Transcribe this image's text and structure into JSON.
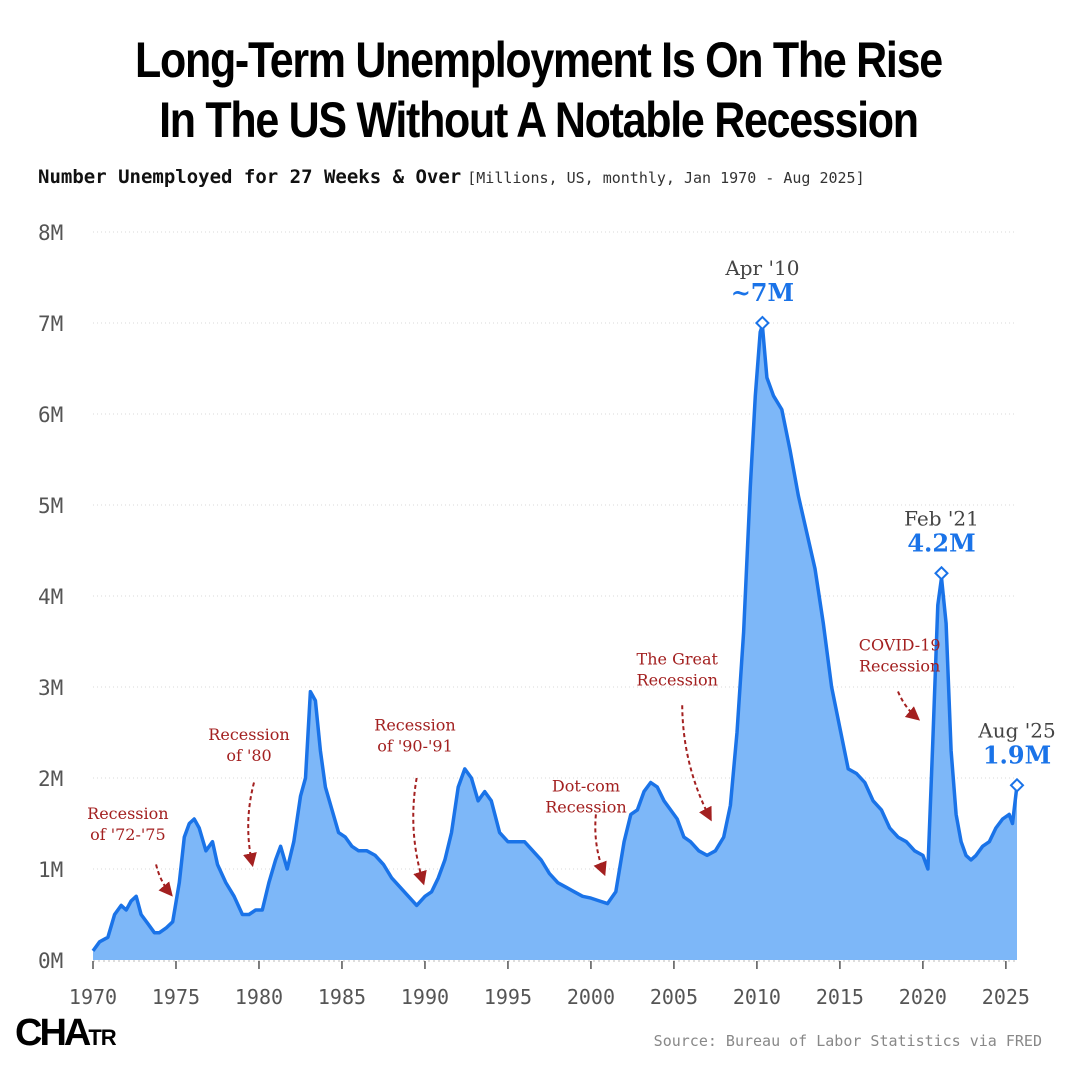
{
  "title_line1": "Long-Term Unemployment Is On The Rise",
  "title_line2": "In The US Without A Notable Recession",
  "subtitle": "Number Unemployed for 27 Weeks & Over",
  "subtitle_meta": "[Millions, US, monthly, Jan 1970 - Aug 2025]",
  "logo_text": "CHA",
  "logo_suffix": "TR",
  "source": "Source: Bureau of Labor Statistics via FRED",
  "colors": {
    "line": "#1a73e8",
    "fill": "#7db7f8",
    "annotation": "#a32020",
    "axis_text": "#555555",
    "callout_label": "#444444"
  },
  "chart_data": {
    "type": "area",
    "title": "Long-Term Unemployment Is On The Rise In The US Without A Notable Recession",
    "xlabel": "",
    "ylabel": "",
    "xlim": [
      1970,
      2025.67
    ],
    "ylim": [
      0,
      8
    ],
    "grid": "horizontal dotted",
    "y_ticks": [
      0,
      1,
      2,
      3,
      4,
      5,
      6,
      7,
      8
    ],
    "y_tick_labels": [
      "0M",
      "1M",
      "2M",
      "3M",
      "4M",
      "5M",
      "6M",
      "7M",
      "8M"
    ],
    "x_ticks": [
      1970,
      1975,
      1980,
      1985,
      1990,
      1995,
      2000,
      2005,
      2010,
      2015,
      2020,
      2025
    ],
    "x_tick_labels": [
      "1970",
      "1975",
      "1980",
      "1985",
      "1990",
      "1995",
      "2000",
      "2005",
      "2010",
      "2015",
      "2020",
      "2025"
    ],
    "series": [
      {
        "points": [
          [
            1970.0,
            0.1
          ],
          [
            1970.4,
            0.2
          ],
          [
            1970.9,
            0.25
          ],
          [
            1971.3,
            0.5
          ],
          [
            1971.7,
            0.6
          ],
          [
            1972.0,
            0.55
          ],
          [
            1972.3,
            0.65
          ],
          [
            1972.6,
            0.7
          ],
          [
            1972.9,
            0.5
          ],
          [
            1973.3,
            0.4
          ],
          [
            1973.7,
            0.3
          ],
          [
            1974.0,
            0.3
          ],
          [
            1974.4,
            0.35
          ],
          [
            1974.8,
            0.42
          ],
          [
            1975.2,
            0.85
          ],
          [
            1975.5,
            1.35
          ],
          [
            1975.8,
            1.5
          ],
          [
            1976.1,
            1.55
          ],
          [
            1976.4,
            1.45
          ],
          [
            1976.8,
            1.2
          ],
          [
            1977.2,
            1.3
          ],
          [
            1977.5,
            1.05
          ],
          [
            1978.0,
            0.85
          ],
          [
            1978.5,
            0.7
          ],
          [
            1979.0,
            0.5
          ],
          [
            1979.4,
            0.5
          ],
          [
            1979.8,
            0.55
          ],
          [
            1980.2,
            0.55
          ],
          [
            1980.6,
            0.85
          ],
          [
            1981.0,
            1.1
          ],
          [
            1981.3,
            1.25
          ],
          [
            1981.7,
            1.0
          ],
          [
            1982.1,
            1.3
          ],
          [
            1982.5,
            1.8
          ],
          [
            1982.8,
            2.0
          ],
          [
            1983.1,
            2.95
          ],
          [
            1983.4,
            2.85
          ],
          [
            1983.7,
            2.3
          ],
          [
            1984.0,
            1.9
          ],
          [
            1984.4,
            1.65
          ],
          [
            1984.8,
            1.4
          ],
          [
            1985.2,
            1.35
          ],
          [
            1985.6,
            1.25
          ],
          [
            1986.0,
            1.2
          ],
          [
            1986.5,
            1.2
          ],
          [
            1987.0,
            1.15
          ],
          [
            1987.5,
            1.05
          ],
          [
            1988.0,
            0.9
          ],
          [
            1988.5,
            0.8
          ],
          [
            1989.0,
            0.7
          ],
          [
            1989.5,
            0.6
          ],
          [
            1990.0,
            0.7
          ],
          [
            1990.4,
            0.75
          ],
          [
            1990.8,
            0.9
          ],
          [
            1991.2,
            1.1
          ],
          [
            1991.6,
            1.4
          ],
          [
            1992.0,
            1.9
          ],
          [
            1992.4,
            2.1
          ],
          [
            1992.8,
            2.0
          ],
          [
            1993.2,
            1.75
          ],
          [
            1993.6,
            1.85
          ],
          [
            1994.0,
            1.75
          ],
          [
            1994.5,
            1.4
          ],
          [
            1995.0,
            1.3
          ],
          [
            1995.5,
            1.3
          ],
          [
            1996.0,
            1.3
          ],
          [
            1996.5,
            1.2
          ],
          [
            1997.0,
            1.1
          ],
          [
            1997.5,
            0.95
          ],
          [
            1998.0,
            0.85
          ],
          [
            1998.5,
            0.8
          ],
          [
            1999.0,
            0.75
          ],
          [
            1999.5,
            0.7
          ],
          [
            2000.0,
            0.68
          ],
          [
            2000.5,
            0.65
          ],
          [
            2001.0,
            0.62
          ],
          [
            2001.5,
            0.75
          ],
          [
            2002.0,
            1.3
          ],
          [
            2002.4,
            1.6
          ],
          [
            2002.8,
            1.65
          ],
          [
            2003.2,
            1.85
          ],
          [
            2003.6,
            1.95
          ],
          [
            2004.0,
            1.9
          ],
          [
            2004.4,
            1.75
          ],
          [
            2004.8,
            1.65
          ],
          [
            2005.2,
            1.55
          ],
          [
            2005.6,
            1.35
          ],
          [
            2006.0,
            1.3
          ],
          [
            2006.5,
            1.2
          ],
          [
            2007.0,
            1.15
          ],
          [
            2007.5,
            1.2
          ],
          [
            2008.0,
            1.35
          ],
          [
            2008.4,
            1.7
          ],
          [
            2008.8,
            2.5
          ],
          [
            2009.2,
            3.6
          ],
          [
            2009.6,
            5.2
          ],
          [
            2009.9,
            6.2
          ],
          [
            2010.2,
            6.9
          ],
          [
            2010.33,
            6.97
          ],
          [
            2010.6,
            6.4
          ],
          [
            2011.0,
            6.2
          ],
          [
            2011.5,
            6.05
          ],
          [
            2012.0,
            5.6
          ],
          [
            2012.5,
            5.1
          ],
          [
            2013.0,
            4.7
          ],
          [
            2013.5,
            4.3
          ],
          [
            2014.0,
            3.7
          ],
          [
            2014.5,
            3.0
          ],
          [
            2015.0,
            2.55
          ],
          [
            2015.5,
            2.1
          ],
          [
            2016.0,
            2.05
          ],
          [
            2016.5,
            1.95
          ],
          [
            2017.0,
            1.75
          ],
          [
            2017.5,
            1.65
          ],
          [
            2018.0,
            1.45
          ],
          [
            2018.5,
            1.35
          ],
          [
            2019.0,
            1.3
          ],
          [
            2019.5,
            1.2
          ],
          [
            2020.0,
            1.15
          ],
          [
            2020.3,
            1.0
          ],
          [
            2020.6,
            2.4
          ],
          [
            2020.9,
            3.9
          ],
          [
            2021.12,
            4.2
          ],
          [
            2021.4,
            3.7
          ],
          [
            2021.7,
            2.3
          ],
          [
            2022.0,
            1.6
          ],
          [
            2022.3,
            1.3
          ],
          [
            2022.6,
            1.15
          ],
          [
            2022.9,
            1.1
          ],
          [
            2023.2,
            1.15
          ],
          [
            2023.6,
            1.25
          ],
          [
            2024.0,
            1.3
          ],
          [
            2024.4,
            1.45
          ],
          [
            2024.8,
            1.55
          ],
          [
            2025.2,
            1.6
          ],
          [
            2025.4,
            1.5
          ],
          [
            2025.67,
            1.92
          ]
        ]
      }
    ],
    "callouts": [
      {
        "date": "Apr '10",
        "value_label": "~7M",
        "x": 2010.33,
        "y": 7.0
      },
      {
        "date": "Feb '21",
        "value_label": "4.2M",
        "x": 2021.12,
        "y": 4.25
      },
      {
        "date": "Aug '25",
        "value_label": "1.9M",
        "x": 2025.67,
        "y": 1.92
      }
    ],
    "annotations": [
      {
        "lines": [
          "Recession",
          "of '72-'75"
        ],
        "text_x": 1972.1,
        "text_y": 1.55,
        "arrow": [
          [
            1973.8,
            1.05
          ],
          [
            1974.7,
            0.72
          ]
        ]
      },
      {
        "lines": [
          "Recession",
          "of '80"
        ],
        "text_x": 1979.4,
        "text_y": 2.42,
        "arrow": [
          [
            1979.7,
            1.95
          ],
          [
            1979.6,
            1.05
          ]
        ]
      },
      {
        "lines": [
          "Recession",
          "of '90-'91"
        ],
        "text_x": 1989.4,
        "text_y": 2.52,
        "arrow": [
          [
            1989.5,
            2.0
          ],
          [
            1989.9,
            0.85
          ]
        ]
      },
      {
        "lines": [
          "Dot-com",
          "Recession"
        ],
        "text_x": 1999.7,
        "text_y": 1.85,
        "arrow": [
          [
            2000.3,
            1.6
          ],
          [
            2000.8,
            0.95
          ]
        ]
      },
      {
        "lines": [
          "The Great",
          "Recession"
        ],
        "text_x": 2005.2,
        "text_y": 3.25,
        "arrow": [
          [
            2005.5,
            2.8
          ],
          [
            2007.2,
            1.55
          ]
        ]
      },
      {
        "lines": [
          "COVID-19",
          "Recession"
        ],
        "text_x": 2018.6,
        "text_y": 3.4,
        "arrow": [
          [
            2018.5,
            2.95
          ],
          [
            2019.7,
            2.65
          ]
        ]
      }
    ]
  }
}
